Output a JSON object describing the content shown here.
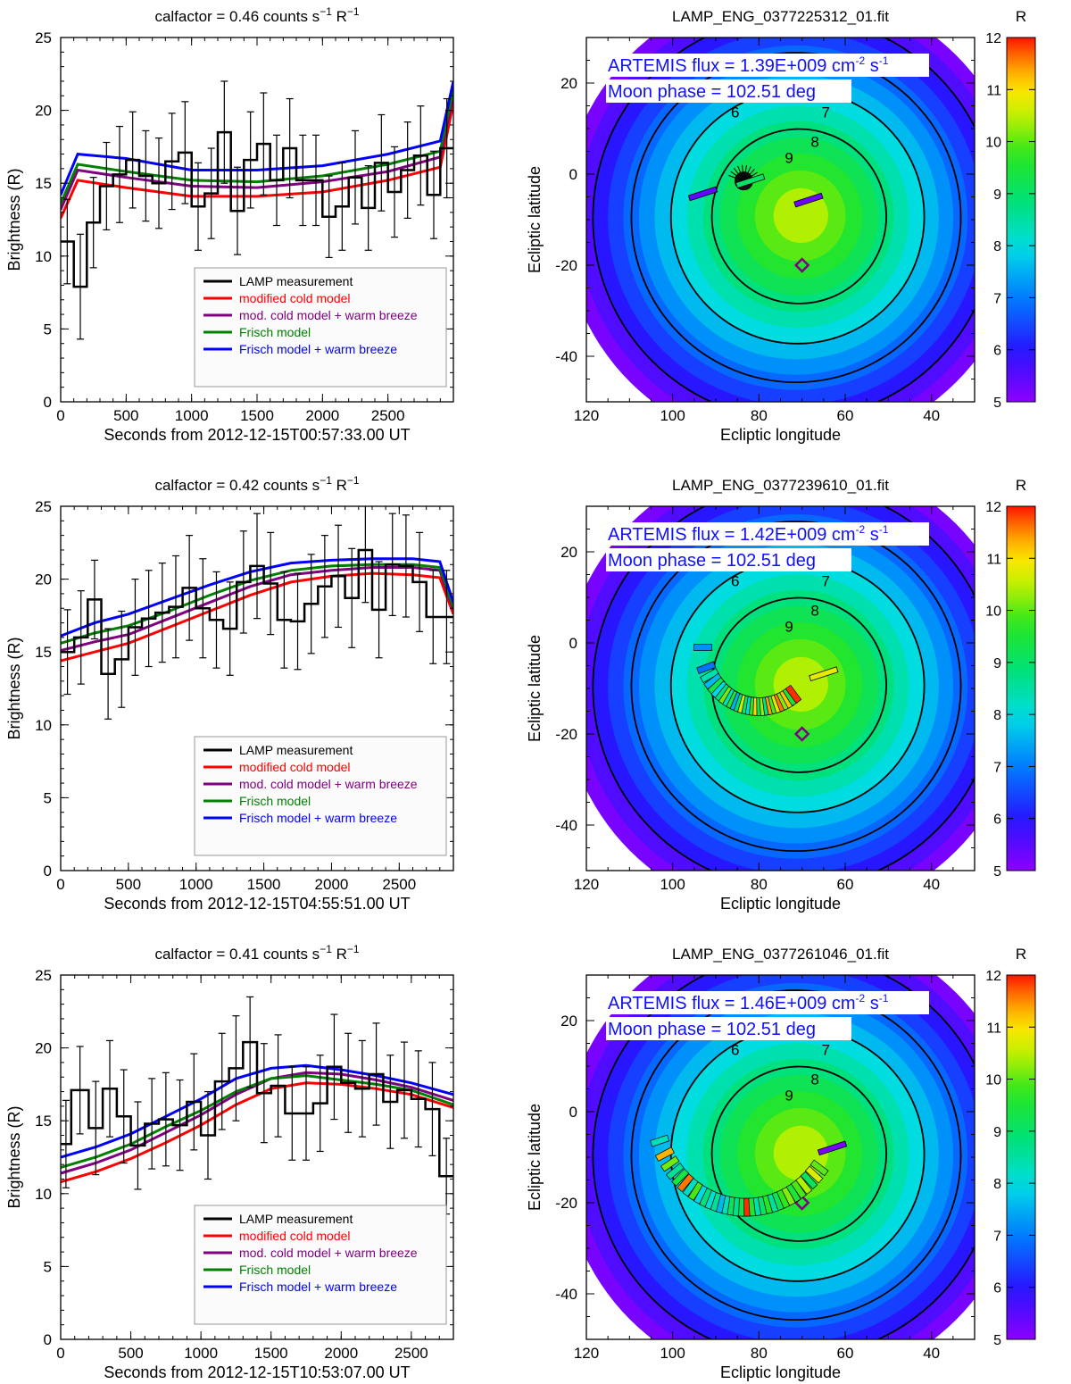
{
  "colors": {
    "lamp": "#000000",
    "cold": "#ff0000",
    "coldwarm": "#800080",
    "frisch": "#008000",
    "frischwarm": "#0000ff",
    "annot": "#1010ff"
  },
  "legend": [
    {
      "key": "lamp",
      "label": "LAMP measurement"
    },
    {
      "key": "cold",
      "label": "modified cold model"
    },
    {
      "key": "coldwarm",
      "label": "mod. cold model + warm breeze"
    },
    {
      "key": "frisch",
      "label": "Frisch model"
    },
    {
      "key": "frischwarm",
      "label": "Frisch model + warm breeze"
    }
  ],
  "chart_data": [
    {
      "type": "line",
      "title": "calfactor = 0.46 counts s$^{-1}$ R$^{-1}$",
      "title_prefix": "calfactor = 0.46 counts s",
      "title_sup1": "−1",
      "title_mid": " R",
      "title_sup2": "−1",
      "xlabel": "Seconds from 2012-12-15T00:57:33.00 UT",
      "ylabel": "Brightness (R)",
      "xlim": [
        0,
        3000
      ],
      "ylim": [
        0,
        25
      ],
      "xticks": [
        0,
        500,
        1000,
        1500,
        2000,
        2500
      ],
      "yticks": [
        0,
        5,
        10,
        15,
        20,
        25
      ],
      "measurement": {
        "name": "LAMP measurement",
        "bin_edges": [
          0,
          100,
          200,
          300,
          400,
          500,
          600,
          700,
          800,
          900,
          1000,
          1100,
          1200,
          1300,
          1400,
          1500,
          1600,
          1700,
          1800,
          1900,
          2000,
          2100,
          2200,
          2300,
          2400,
          2500,
          2600,
          2700,
          2800,
          2900,
          3000
        ],
        "values": [
          11.0,
          7.9,
          12.3,
          14.8,
          15.6,
          16.6,
          15.5,
          15.0,
          16.5,
          17.1,
          13.4,
          14.3,
          18.5,
          13.1,
          16.6,
          17.7,
          15.2,
          17.4,
          15.2,
          15.2,
          12.7,
          13.4,
          15.4,
          13.3,
          16.4,
          14.4,
          15.9,
          16.9,
          14.2,
          17.4
        ],
        "errors": [
          2.9,
          3.6,
          3.1,
          3.0,
          3.3,
          3.3,
          3.1,
          3.1,
          3.3,
          3.5,
          3.0,
          3.1,
          3.5,
          3.0,
          3.3,
          3.5,
          3.1,
          3.4,
          3.1,
          3.1,
          2.8,
          3.0,
          3.2,
          2.9,
          3.3,
          3.1,
          3.3,
          3.4,
          3.0,
          3.4
        ]
      },
      "series": [
        {
          "name": "modified cold model",
          "key": "cold",
          "x": [
            0,
            130,
            500,
            1000,
            1500,
            2000,
            2500,
            2900,
            3000
          ],
          "y": [
            12.6,
            15.2,
            14.7,
            14.1,
            14.1,
            14.4,
            15.2,
            16.1,
            20.5
          ]
        },
        {
          "name": "mod. cold model + warm breeze",
          "key": "coldwarm",
          "x": [
            0,
            130,
            500,
            1000,
            1500,
            2000,
            2500,
            2900,
            3000
          ],
          "y": [
            13.2,
            15.9,
            15.4,
            14.8,
            14.7,
            15.1,
            15.8,
            16.8,
            21.1
          ]
        },
        {
          "name": "Frisch model",
          "key": "frisch",
          "x": [
            0,
            130,
            500,
            1000,
            1500,
            2000,
            2500,
            2900,
            3000
          ],
          "y": [
            13.6,
            16.3,
            15.8,
            15.2,
            15.1,
            15.5,
            16.3,
            17.2,
            21.5
          ]
        },
        {
          "name": "Frisch model + warm breeze",
          "key": "frischwarm",
          "x": [
            0,
            130,
            500,
            1000,
            1500,
            2000,
            2500,
            2900,
            3000
          ],
          "y": [
            14.2,
            17.0,
            16.7,
            15.9,
            15.9,
            16.2,
            17.0,
            17.9,
            22.0
          ]
        }
      ]
    },
    {
      "type": "heatmap",
      "title": "LAMP_ENG_0377225312_01.fit",
      "xlabel": "Ecliptic longitude",
      "ylabel": "Ecliptic latitude",
      "xlim": [
        120,
        30
      ],
      "ylim": [
        -50,
        30
      ],
      "xticks": [
        120,
        100,
        80,
        60,
        40
      ],
      "yticks": [
        20,
        0,
        -20,
        -40
      ],
      "colorbar": {
        "label": "R",
        "range": [
          5,
          12
        ],
        "ticks": [
          5,
          6,
          7,
          8,
          9,
          10,
          11,
          12
        ]
      },
      "peak": {
        "lon": 70,
        "lat": -9,
        "value": 10.6
      },
      "contours": [
        6,
        7,
        8,
        9
      ],
      "flux_text": "ARTEMIS flux =  1.39E+009 cm",
      "flux_sup": "-2",
      "flux_unit2": " s",
      "flux_sup2": "-1",
      "phase_text": "Moon phase = 102.51 deg",
      "diamond": {
        "lon": 70,
        "lat": -20
      },
      "segments": [
        {
          "lon": 93,
          "lat": -4.3,
          "value": 5.4
        },
        {
          "lon": 68.5,
          "lat": -5.7,
          "value": 5.3
        },
        {
          "lon": 82,
          "lat": -1.5,
          "value": 9.0
        }
      ],
      "fan": {
        "lon": 83.5,
        "lat": -1.5,
        "value": 5.0
      }
    },
    {
      "type": "line",
      "title": "calfactor = 0.42 counts s$^{-1}$ R$^{-1}$",
      "title_prefix": "calfactor = 0.42 counts s",
      "title_sup1": "−1",
      "title_mid": " R",
      "title_sup2": "−1",
      "xlabel": "Seconds from 2012-12-15T04:55:51.00 UT",
      "ylabel": "Brightness (R)",
      "xlim": [
        0,
        2900
      ],
      "ylim": [
        0,
        25
      ],
      "xticks": [
        0,
        500,
        1000,
        1500,
        2000,
        2500
      ],
      "yticks": [
        0,
        5,
        10,
        15,
        20,
        25
      ],
      "measurement": {
        "name": "LAMP measurement",
        "bin_edges": [
          0,
          100,
          200,
          300,
          400,
          500,
          600,
          700,
          800,
          900,
          1000,
          1100,
          1200,
          1300,
          1400,
          1500,
          1600,
          1700,
          1800,
          1900,
          2000,
          2100,
          2200,
          2300,
          2400,
          2500,
          2600,
          2700,
          2800,
          2900
        ],
        "values": [
          15.0,
          16.0,
          18.6,
          13.5,
          14.5,
          16.7,
          17.3,
          17.7,
          18.1,
          19.4,
          18.0,
          17.2,
          16.6,
          19.8,
          20.9,
          19.7,
          17.2,
          17.1,
          18.3,
          19.5,
          20.2,
          18.7,
          22.0,
          17.9,
          21.0,
          20.9,
          19.8,
          17.4,
          17.4
        ],
        "errors": [
          2.9,
          3.2,
          2.7,
          3.1,
          3.3,
          3.3,
          3.3,
          3.4,
          3.5,
          3.6,
          3.4,
          3.3,
          3.2,
          3.5,
          3.6,
          3.5,
          3.3,
          3.3,
          3.4,
          3.5,
          3.5,
          3.4,
          3.6,
          3.3,
          3.5,
          3.5,
          3.4,
          3.2,
          3.2
        ]
      },
      "series": [
        {
          "name": "modified cold model",
          "key": "cold",
          "x": [
            0,
            250,
            500,
            800,
            1100,
            1400,
            1700,
            2000,
            2300,
            2600,
            2800,
            2900
          ],
          "y": [
            14.4,
            15.0,
            15.6,
            16.7,
            17.8,
            18.9,
            19.8,
            20.2,
            20.4,
            20.3,
            20.1,
            17.6
          ]
        },
        {
          "name": "mod. cold model + warm breeze",
          "key": "coldwarm",
          "x": [
            0,
            250,
            500,
            800,
            1100,
            1400,
            1700,
            2000,
            2300,
            2600,
            2800,
            2900
          ],
          "y": [
            15.1,
            15.7,
            16.2,
            17.3,
            18.4,
            19.5,
            20.3,
            20.6,
            20.8,
            20.8,
            20.6,
            17.9
          ]
        },
        {
          "name": "Frisch model",
          "key": "frisch",
          "x": [
            0,
            250,
            500,
            800,
            1100,
            1400,
            1700,
            2000,
            2300,
            2600,
            2800,
            2900
          ],
          "y": [
            15.6,
            16.3,
            16.8,
            17.8,
            18.9,
            19.9,
            20.6,
            20.9,
            21.0,
            21.0,
            20.8,
            18.1
          ]
        },
        {
          "name": "Frisch model + warm breeze",
          "key": "frischwarm",
          "x": [
            0,
            250,
            500,
            800,
            1100,
            1400,
            1700,
            2000,
            2300,
            2600,
            2800,
            2900
          ],
          "y": [
            16.1,
            17.0,
            17.6,
            18.6,
            19.6,
            20.5,
            21.1,
            21.3,
            21.4,
            21.4,
            21.2,
            18.4
          ]
        }
      ]
    },
    {
      "type": "heatmap",
      "title": "LAMP_ENG_0377239610_01.fit",
      "xlabel": "Ecliptic longitude",
      "ylabel": "Ecliptic latitude",
      "xlim": [
        120,
        30
      ],
      "ylim": [
        -50,
        30
      ],
      "xticks": [
        120,
        100,
        80,
        60,
        40
      ],
      "yticks": [
        20,
        0,
        -20,
        -40
      ],
      "colorbar": {
        "label": "R",
        "range": [
          5,
          12
        ],
        "ticks": [
          5,
          6,
          7,
          8,
          9,
          10,
          11,
          12
        ]
      },
      "peak": {
        "lon": 70,
        "lat": -9,
        "value": 10.6
      },
      "contours": [
        6,
        7,
        8,
        9
      ],
      "flux_text": "ARTEMIS flux =  1.42E+009 cm",
      "flux_sup": "-2",
      "flux_unit2": " s",
      "flux_sup2": "-1",
      "phase_text": "Moon phase = 102.51 deg",
      "diamond": {
        "lon": 70,
        "lat": -20
      },
      "arc": {
        "center_lon": 80,
        "center_lat": -1,
        "radius": 13,
        "lon_start": 93,
        "lon_end": 72,
        "values": [
          7.2,
          6.9,
          8.4,
          7.6,
          9.3,
          7.9,
          8.8,
          10.1,
          8.3,
          9.6,
          7.5,
          8.9,
          10.6,
          9.0,
          8.1,
          9.8,
          11.1,
          9.2,
          10.3,
          8.7,
          11.4,
          9.9,
          10.8,
          11.6,
          10.2,
          11.2,
          9.5,
          11.9
        ]
      },
      "segments": [
        {
          "lon": 65,
          "lat": -6.8,
          "value": 10.8
        }
      ]
    },
    {
      "type": "line",
      "title": "calfactor = 0.41 counts s$^{-1}$ R$^{-1}$",
      "title_prefix": "calfactor = 0.41 counts s",
      "title_sup1": "−1",
      "title_mid": " R",
      "title_sup2": "−1",
      "xlabel": "Seconds from 2012-12-15T10:53:07.00 UT",
      "ylabel": "Brightness (R)",
      "xlim": [
        0,
        2800
      ],
      "ylim": [
        0,
        25
      ],
      "xticks": [
        0,
        500,
        1000,
        1500,
        2000,
        2500
      ],
      "yticks": [
        0,
        5,
        10,
        15,
        20,
        25
      ],
      "measurement": {
        "name": "LAMP measurement",
        "bin_edges": [
          0,
          75,
          200,
          300,
          400,
          500,
          600,
          700,
          800,
          900,
          1000,
          1100,
          1200,
          1300,
          1400,
          1500,
          1600,
          1700,
          1800,
          1900,
          2000,
          2100,
          2200,
          2300,
          2400,
          2500,
          2600,
          2700,
          2800
        ],
        "values": [
          13.4,
          17.1,
          14.5,
          17.2,
          15.3,
          13.3,
          14.8,
          15.1,
          14.7,
          16.3,
          14.0,
          17.7,
          18.6,
          20.4,
          16.9,
          17.4,
          15.5,
          15.5,
          16.2,
          18.7,
          17.6,
          17.2,
          18.2,
          16.3,
          17.1,
          16.5,
          15.8,
          11.2
        ],
        "errors": [
          3.0,
          3.0,
          3.2,
          3.3,
          3.2,
          3.0,
          3.1,
          3.2,
          3.1,
          3.3,
          3.0,
          3.3,
          3.6,
          3.1,
          3.4,
          3.5,
          3.2,
          3.2,
          3.3,
          3.6,
          3.4,
          3.3,
          3.5,
          3.2,
          3.3,
          3.3,
          3.2,
          2.6
        ]
      },
      "series": [
        {
          "name": "modified cold model",
          "key": "cold",
          "x": [
            0,
            250,
            500,
            750,
            1000,
            1250,
            1500,
            1750,
            2000,
            2250,
            2500,
            2800
          ],
          "y": [
            10.8,
            11.5,
            12.4,
            13.5,
            14.7,
            16.1,
            17.2,
            17.6,
            17.5,
            17.2,
            16.8,
            15.9
          ]
        },
        {
          "name": "mod. cold model + warm breeze",
          "key": "coldwarm",
          "x": [
            0,
            250,
            500,
            750,
            1000,
            1250,
            1500,
            1750,
            2000,
            2250,
            2500,
            2800
          ],
          "y": [
            11.4,
            12.1,
            13.0,
            14.2,
            15.4,
            16.8,
            17.9,
            18.3,
            18.2,
            17.8,
            17.3,
            16.4
          ]
        },
        {
          "name": "Frisch model",
          "key": "frisch",
          "x": [
            0,
            250,
            500,
            750,
            1000,
            1250,
            1500,
            1750,
            2000,
            2250,
            2500,
            2800
          ],
          "y": [
            11.8,
            12.5,
            13.4,
            14.6,
            15.7,
            17.0,
            17.9,
            18.1,
            17.8,
            17.5,
            17.1,
            16.1
          ]
        },
        {
          "name": "Frisch model + warm breeze",
          "key": "frischwarm",
          "x": [
            0,
            250,
            500,
            750,
            1000,
            1250,
            1500,
            1750,
            2000,
            2250,
            2500,
            2800
          ],
          "y": [
            12.5,
            13.2,
            14.1,
            15.3,
            16.5,
            17.9,
            18.6,
            18.8,
            18.5,
            18.1,
            17.6,
            16.8
          ]
        }
      ]
    },
    {
      "type": "heatmap",
      "title": "LAMP_ENG_0377261046_01.fit",
      "xlabel": "Ecliptic longitude",
      "ylabel": "Ecliptic latitude",
      "xlim": [
        120,
        30
      ],
      "ylim": [
        -50,
        30
      ],
      "xticks": [
        120,
        100,
        80,
        60,
        40
      ],
      "yticks": [
        20,
        0,
        -20,
        -40
      ],
      "colorbar": {
        "label": "R",
        "range": [
          5,
          12
        ],
        "ticks": [
          5,
          6,
          7,
          8,
          9,
          10,
          11,
          12
        ]
      },
      "peak": {
        "lon": 70,
        "lat": -9,
        "value": 10.6
      },
      "contours": [
        6,
        7,
        8,
        9
      ],
      "flux_text": "ARTEMIS flux =  1.46E+009 cm",
      "flux_sup": "-2",
      "flux_unit2": " s",
      "flux_sup2": "-1",
      "phase_text": "Moon phase = 102.51 deg",
      "diamond": {
        "lon": 70,
        "lat": -20
      },
      "arc": {
        "center_lon": 83,
        "center_lat": 0,
        "radius": 21,
        "lon_start": 103,
        "lon_end": 66,
        "values": [
          8.3,
          11.3,
          10.1,
          8.6,
          9.4,
          11.6,
          8.2,
          9.9,
          7.9,
          8.8,
          8.1,
          8.6,
          7.6,
          8.3,
          9.1,
          8.7,
          9.3,
          11.9,
          9.6,
          8.4,
          9.0,
          9.7,
          8.5,
          9.2,
          9.8,
          10.2,
          9.5,
          9.9,
          10.4,
          9.1,
          10.7,
          10.0
        ]
      },
      "segments": [
        {
          "lon": 63,
          "lat": -8,
          "value": 5.2
        }
      ]
    }
  ]
}
